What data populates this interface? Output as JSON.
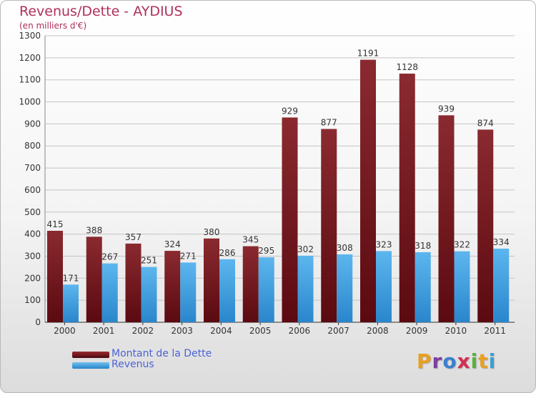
{
  "header": {
    "title": "Revenus/Dette - AYDIUS",
    "subtitle": "(en milliers d'€)"
  },
  "legend": {
    "position": "bottom-left",
    "items": [
      {
        "label": "Montant de la Dette",
        "color": "#7a1c22"
      },
      {
        "label": "Revenus",
        "color": "#3d9ee0"
      }
    ]
  },
  "logo": {
    "text": "Proxiti",
    "letter_colors": [
      "#e8a020",
      "#7a3fa0",
      "#3a7fd0",
      "#d03050",
      "#5ab040",
      "#e8a020",
      "#3aa0d0"
    ]
  },
  "chart_data": {
    "type": "bar",
    "title": "Revenus/Dette - AYDIUS",
    "subtitle": "(en milliers d'€)",
    "categories": [
      "2000",
      "2001",
      "2002",
      "2003",
      "2004",
      "2005",
      "2006",
      "2007",
      "2008",
      "2009",
      "2010",
      "2011"
    ],
    "series": [
      {
        "name": "Montant de la Dette",
        "color": "#7a1c22",
        "values": [
          415,
          388,
          357,
          324,
          380,
          345,
          929,
          877,
          1191,
          1128,
          939,
          874
        ]
      },
      {
        "name": "Revenus",
        "color": "#3d9ee0",
        "values": [
          171,
          267,
          251,
          271,
          286,
          295,
          302,
          308,
          323,
          318,
          322,
          334
        ]
      }
    ],
    "ylim": [
      0,
      1300
    ],
    "yticks": [
      0,
      100,
      200,
      300,
      400,
      500,
      600,
      700,
      800,
      900,
      1000,
      1100,
      1200,
      1300
    ],
    "grid": true,
    "legend": "bottom-left"
  }
}
